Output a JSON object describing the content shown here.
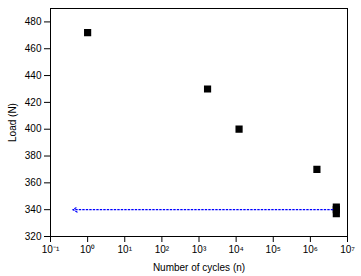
{
  "chart_data": {
    "type": "scatter",
    "x_label": "Number of cycles (n)",
    "y_label": "Load (N)",
    "log": "x",
    "grid": false,
    "xlim": [
      0.1,
      10000000
    ],
    "ylim": [
      320,
      490
    ],
    "xticks": [
      {
        "value": 0.1,
        "label": "10⁻¹"
      },
      {
        "value": 1,
        "label": "10⁰"
      },
      {
        "value": 10,
        "label": "10¹"
      },
      {
        "value": 100,
        "label": "10²"
      },
      {
        "value": 1000,
        "label": "10³"
      },
      {
        "value": 10000,
        "label": "10⁴"
      },
      {
        "value": 100000,
        "label": "10⁵"
      },
      {
        "value": 1000000,
        "label": "10⁶"
      },
      {
        "value": 10000000,
        "label": "10⁷"
      }
    ],
    "yticks": [
      320,
      340,
      360,
      380,
      400,
      420,
      440,
      460,
      480
    ],
    "series": [
      {
        "type": "scatter",
        "marker": "square",
        "color": "#000000",
        "x": [
          1,
          1700,
          12000,
          1500000,
          5000000,
          5000000,
          5000000
        ],
        "values": [
          472,
          430,
          400,
          370,
          342,
          340,
          337
        ]
      },
      {
        "type": "line",
        "marker": "arrow",
        "line_style": "dotted",
        "color": "#0000ff",
        "x": [
          4000000,
          0.4
        ],
        "values": [
          340,
          340
        ]
      }
    ]
  }
}
